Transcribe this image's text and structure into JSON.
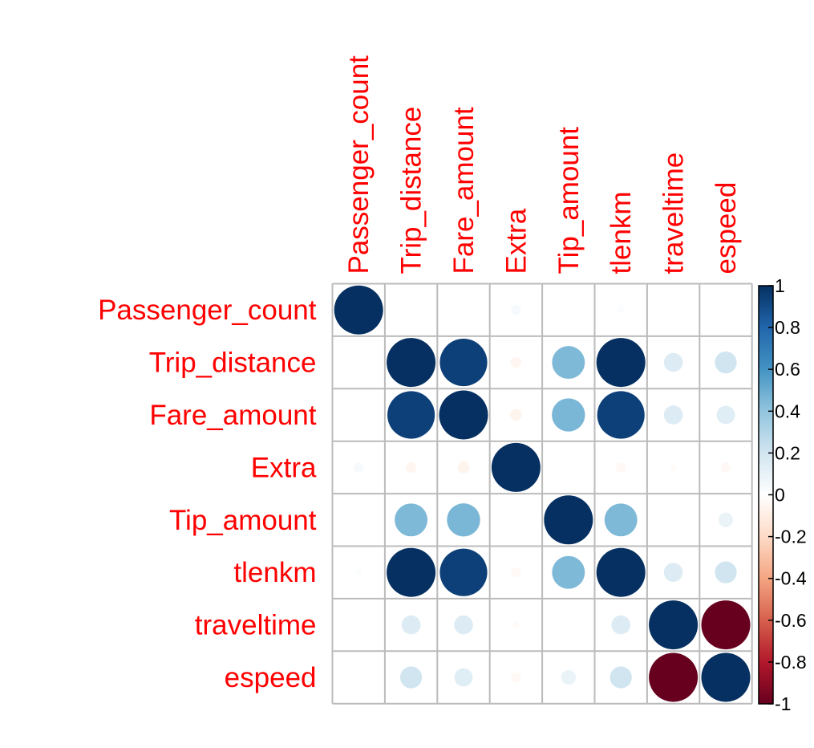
{
  "chart_data": {
    "type": "heatmap",
    "style": "corrplot-circle",
    "variables": [
      "Passenger_count",
      "Trip_distance",
      "Fare_amount",
      "Extra",
      "Tip_amount",
      "tlenkm",
      "traveltime",
      "espeed"
    ],
    "matrix": [
      [
        1.0,
        0.01,
        0.01,
        0.04,
        0.0,
        0.02,
        0.0,
        0.0
      ],
      [
        0.01,
        1.0,
        0.94,
        -0.05,
        0.45,
        1.0,
        0.15,
        0.2
      ],
      [
        0.01,
        0.94,
        1.0,
        -0.06,
        0.46,
        0.94,
        0.15,
        0.14
      ],
      [
        0.04,
        -0.05,
        -0.06,
        1.0,
        0.0,
        -0.04,
        -0.02,
        -0.04
      ],
      [
        0.0,
        0.45,
        0.46,
        0.0,
        1.0,
        0.45,
        0.01,
        0.09
      ],
      [
        0.02,
        1.0,
        0.94,
        -0.04,
        0.45,
        1.0,
        0.15,
        0.2
      ],
      [
        0.0,
        0.15,
        0.15,
        -0.02,
        0.01,
        0.15,
        1.0,
        -1.0
      ],
      [
        0.0,
        0.2,
        0.14,
        -0.04,
        0.09,
        0.2,
        -1.0,
        1.0
      ]
    ],
    "colorbar": {
      "ticks": [
        "1",
        "0.8",
        "0.6",
        "0.4",
        "0.2",
        "0",
        "-0.2",
        "-0.4",
        "-0.6",
        "-0.8",
        "-1"
      ],
      "range": [
        -1,
        1
      ]
    },
    "colors": {
      "label": "#ff0000",
      "grid": "#bbbbbb",
      "palette": [
        "#67001f",
        "#b2182b",
        "#d6604d",
        "#f4a582",
        "#fddbc7",
        "#ffffff",
        "#d1e5f0",
        "#92c5de",
        "#4393c3",
        "#2166ac",
        "#053061"
      ]
    }
  }
}
